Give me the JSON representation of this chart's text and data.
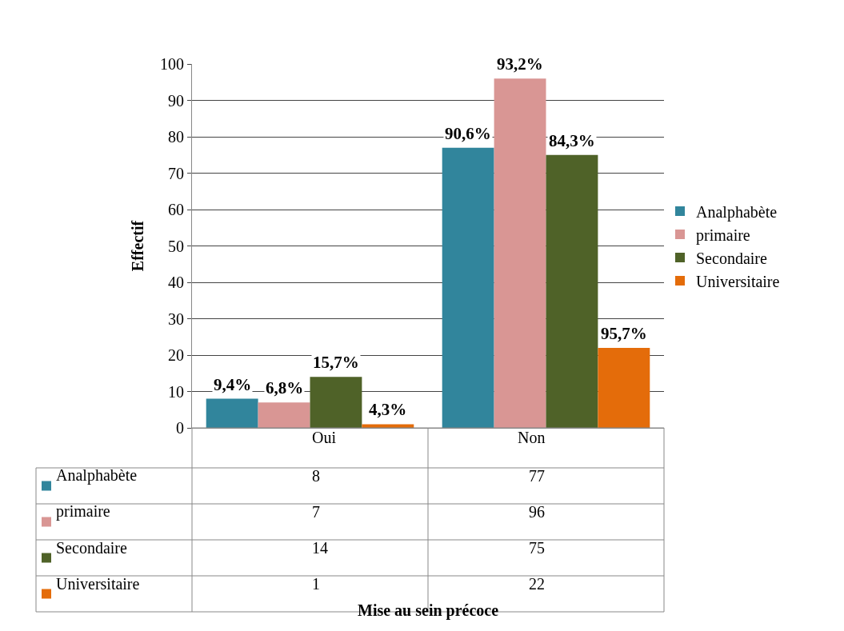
{
  "chart_data": {
    "type": "bar",
    "ylabel": "Effectif",
    "annotations": [
      "9,4%",
      "6,8%",
      "15,7%",
      "4,3%",
      "90,6%",
      "93,2%",
      "84,3%",
      "95,7%",
      "Mise au sein précoce"
    ],
    "categories": [
      "Oui",
      "Non"
    ],
    "series": [
      {
        "name": "Analphabète",
        "color": "#31859c",
        "values": [
          8,
          77
        ]
      },
      {
        "name": "primaire",
        "color": "#d99694",
        "values": [
          7,
          96
        ]
      },
      {
        "name": "Secondaire",
        "color": "#4f6228",
        "values": [
          14,
          75
        ]
      },
      {
        "name": "Universitaire",
        "color": "#e46c0a",
        "values": [
          1,
          22
        ]
      }
    ],
    "ylim": [
      0,
      100
    ],
    "yticks": [
      0,
      10,
      20,
      30,
      40,
      50,
      60,
      70,
      80,
      90,
      100
    ],
    "grid": "y",
    "legend": "right",
    "data_labels": true
  }
}
